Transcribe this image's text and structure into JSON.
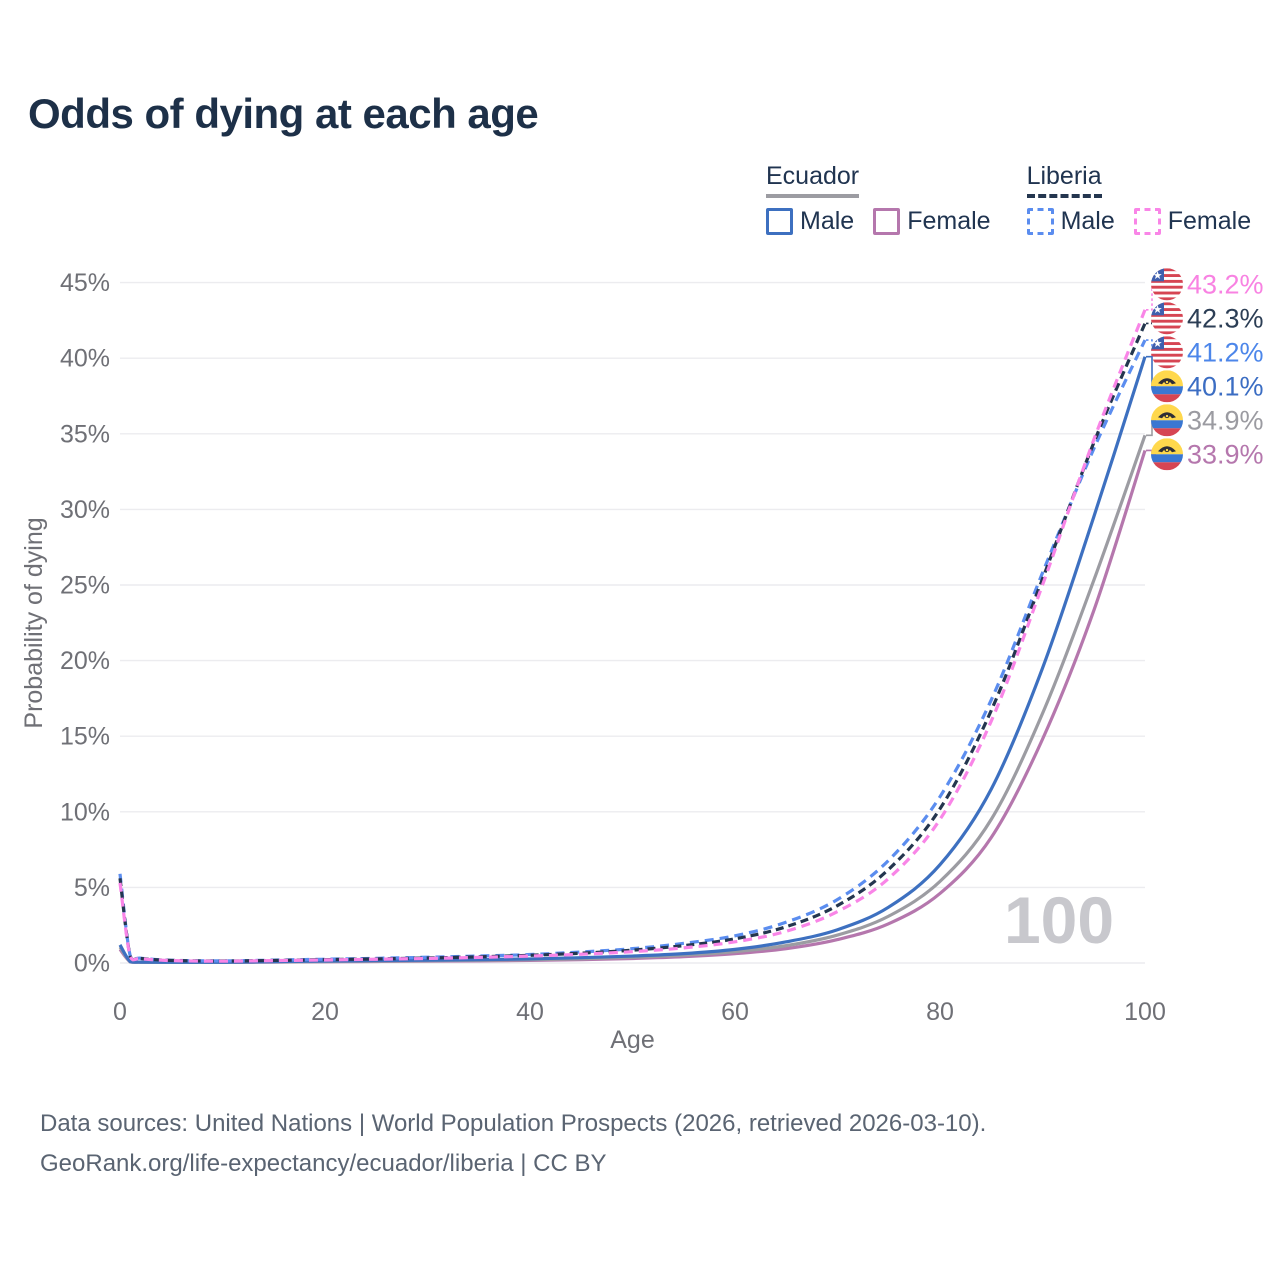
{
  "title": "Odds of dying at each age",
  "legend": {
    "groups": [
      {
        "country": "Ecuador",
        "style": "solid",
        "underline_color": "#9c9ca2",
        "items": [
          {
            "label": "Male",
            "color": "#3d70c0"
          },
          {
            "label": "Female",
            "color": "#b577ad"
          }
        ]
      },
      {
        "country": "Liberia",
        "style": "dashed",
        "underline_color": "#24364f",
        "items": [
          {
            "label": "Male",
            "color": "#5b8def"
          },
          {
            "label": "Female",
            "color": "#f985e7"
          }
        ]
      }
    ]
  },
  "chart_data": {
    "type": "line",
    "title": "Odds of dying at each age",
    "xlabel": "Age",
    "ylabel": "Probability of dying",
    "xlim": [
      0,
      100
    ],
    "ylim": [
      0,
      47
    ],
    "x_ticks": [
      0,
      20,
      40,
      60,
      80,
      100
    ],
    "y_ticks": [
      "0%",
      "5%",
      "10%",
      "15%",
      "20%",
      "25%",
      "30%",
      "35%",
      "40%",
      "45%"
    ],
    "grid": "horizontal",
    "legend_position": "top-right",
    "watermark": "100",
    "x": [
      0,
      1,
      2,
      5,
      10,
      15,
      20,
      25,
      30,
      35,
      40,
      45,
      50,
      55,
      60,
      65,
      70,
      75,
      80,
      85,
      90,
      95,
      100
    ],
    "series": [
      {
        "name": "Liberia Female",
        "country": "Liberia",
        "sex": "Female",
        "color": "#f985e7",
        "label_color": "#f882e2",
        "dashed": true,
        "flag": "liberia",
        "end_label": "43.2%",
        "end_value": 43.2,
        "values": [
          5.3,
          0.4,
          0.28,
          0.16,
          0.12,
          0.16,
          0.2,
          0.25,
          0.3,
          0.37,
          0.46,
          0.58,
          0.75,
          1.0,
          1.4,
          2.1,
          3.4,
          5.6,
          9.5,
          16.0,
          25.0,
          34.6,
          43.2
        ]
      },
      {
        "name": "Liberia",
        "country": "Liberia",
        "sex": "Both",
        "color": "#24364f",
        "label_color": "#2c3e55",
        "dashed": true,
        "flag": "liberia",
        "end_label": "42.3%",
        "end_value": 42.3,
        "values": [
          5.6,
          0.43,
          0.3,
          0.17,
          0.13,
          0.17,
          0.22,
          0.27,
          0.33,
          0.41,
          0.51,
          0.65,
          0.85,
          1.15,
          1.6,
          2.4,
          3.8,
          6.2,
          10.2,
          16.7,
          25.4,
          34.4,
          42.3
        ]
      },
      {
        "name": "Liberia Male",
        "country": "Liberia",
        "sex": "Male",
        "color": "#5b8def",
        "label_color": "#4c86ea",
        "dashed": true,
        "flag": "liberia",
        "end_label": "41.2%",
        "end_value": 41.2,
        "values": [
          5.9,
          0.46,
          0.32,
          0.18,
          0.14,
          0.19,
          0.25,
          0.31,
          0.38,
          0.46,
          0.56,
          0.73,
          0.95,
          1.3,
          1.8,
          2.7,
          4.2,
          6.8,
          11.0,
          17.4,
          25.8,
          34.0,
          41.2
        ]
      },
      {
        "name": "Ecuador Male",
        "country": "Ecuador",
        "sex": "Male",
        "color": "#3d70c0",
        "label_color": "#3b6dc3",
        "dashed": false,
        "flag": "ecuador",
        "end_label": "40.1%",
        "end_value": 40.1,
        "values": [
          1.2,
          0.09,
          0.06,
          0.05,
          0.05,
          0.09,
          0.13,
          0.16,
          0.19,
          0.22,
          0.27,
          0.35,
          0.46,
          0.62,
          0.9,
          1.4,
          2.2,
          3.7,
          6.5,
          11.5,
          19.5,
          29.5,
          40.1
        ]
      },
      {
        "name": "Ecuador",
        "country": "Ecuador",
        "sex": "Both",
        "color": "#9c9ca2",
        "label_color": "#9b9ba1",
        "dashed": false,
        "flag": "ecuador",
        "end_label": "34.9%",
        "end_value": 34.9,
        "values": [
          1.05,
          0.08,
          0.05,
          0.04,
          0.05,
          0.07,
          0.1,
          0.12,
          0.15,
          0.18,
          0.22,
          0.28,
          0.38,
          0.52,
          0.75,
          1.15,
          1.85,
          3.1,
          5.4,
          9.5,
          16.5,
          25.3,
          34.9
        ]
      },
      {
        "name": "Ecuador Female",
        "country": "Ecuador",
        "sex": "Female",
        "color": "#b577ad",
        "label_color": "#b577ad",
        "dashed": false,
        "flag": "ecuador",
        "end_label": "33.9%",
        "end_value": 33.9,
        "values": [
          0.9,
          0.07,
          0.05,
          0.04,
          0.04,
          0.06,
          0.08,
          0.1,
          0.12,
          0.14,
          0.17,
          0.22,
          0.3,
          0.42,
          0.62,
          0.95,
          1.55,
          2.6,
          4.6,
          8.3,
          14.8,
          23.3,
          33.9
        ]
      }
    ]
  },
  "footer": {
    "line1": "Data sources: United Nations | World Population Prospects (2026, retrieved 2026-03-10).",
    "line2": "GeoRank.org/life-expectancy/ecuador/liberia | CC BY"
  }
}
